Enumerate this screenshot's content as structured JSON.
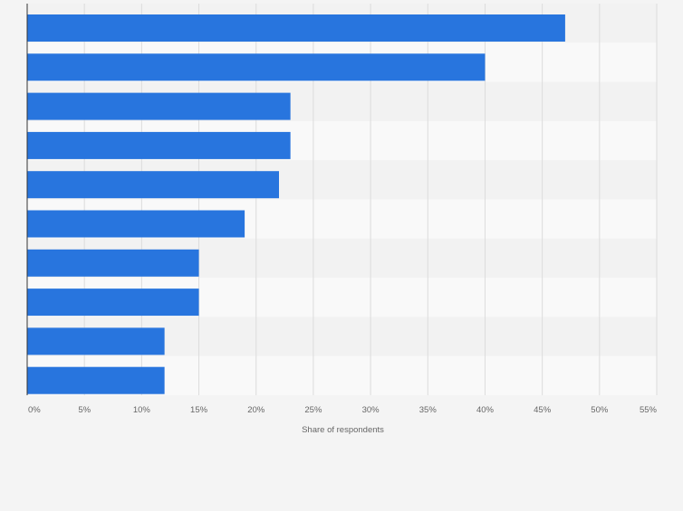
{
  "chart_data": {
    "type": "bar",
    "orientation": "horizontal",
    "title": "",
    "categories": [
      "",
      "",
      "",
      "",
      "",
      "",
      "",
      "",
      "",
      ""
    ],
    "values": [
      47,
      40,
      23,
      23,
      22,
      19,
      15,
      15,
      12,
      12
    ],
    "xlabel": "Share of respondents",
    "ylabel": "",
    "xlim": [
      0,
      55
    ],
    "xticks": [
      "0%",
      "5%",
      "10%",
      "15%",
      "20%",
      "25%",
      "30%",
      "35%",
      "40%",
      "45%",
      "50%",
      "55%"
    ],
    "grid": true,
    "legend": "none",
    "colors": {
      "bar": "#2875de",
      "band_light": "#f9f9f9",
      "band_dark": "#f2f2f2",
      "grid": "#dcdcdc",
      "axis": "#333333",
      "tick_text": "#666666"
    }
  }
}
